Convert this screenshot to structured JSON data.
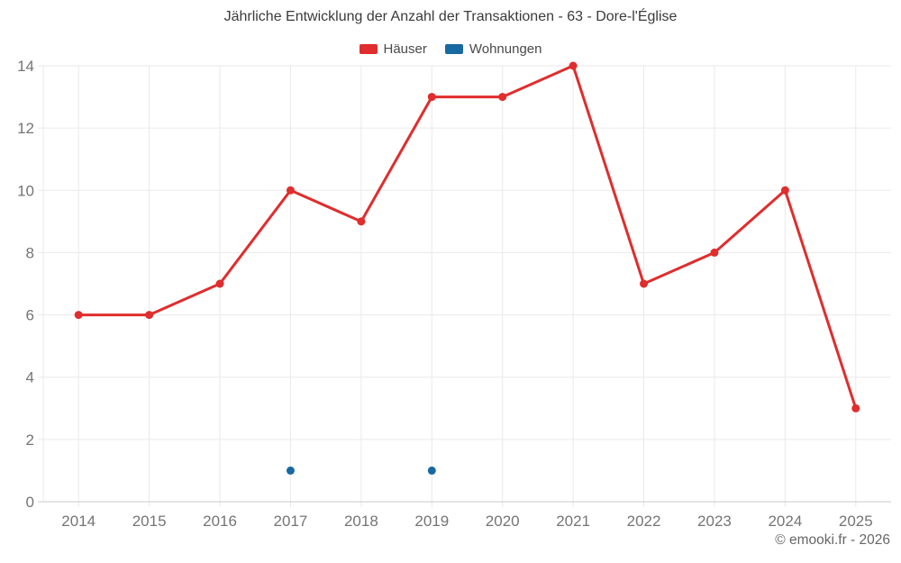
{
  "title": "Jährliche Entwicklung der Anzahl der Transaktionen - 63 - Dore-l'Église",
  "footer": "© emooki.fr - 2026",
  "colors": {
    "background": "#ffffff",
    "title_text": "#3b3b3b",
    "legend_text": "#4a4a4a",
    "tick_label": "#757575",
    "grid_line": "#eaeaea",
    "axis_line": "#c9c9c9",
    "footer_text": "#666666",
    "hauser_red": "#e02d2d",
    "wohnungen_blue": "#1769a2"
  },
  "chart_data": {
    "type": "line",
    "title": "Jährliche Entwicklung der Anzahl der Transaktionen - 63 - Dore-l'Église",
    "categories": [
      "2014",
      "2015",
      "2016",
      "2017",
      "2018",
      "2019",
      "2020",
      "2021",
      "2022",
      "2023",
      "2024",
      "2025"
    ],
    "series": [
      {
        "name": "Häuser",
        "color": "#e02d2d",
        "values": [
          6,
          6,
          7,
          10,
          9,
          13,
          13,
          14,
          7,
          8,
          10,
          3
        ]
      },
      {
        "name": "Wohnungen",
        "color": "#1769a2",
        "values": [
          null,
          null,
          null,
          1,
          null,
          1,
          null,
          null,
          null,
          null,
          null,
          null
        ]
      }
    ],
    "xlabel": "",
    "ylabel": "",
    "ylim": [
      0,
      14
    ],
    "ytick_step": 2,
    "yticks": [
      0,
      2,
      4,
      6,
      8,
      10,
      12,
      14
    ],
    "grid": true,
    "legend_position": "top"
  }
}
